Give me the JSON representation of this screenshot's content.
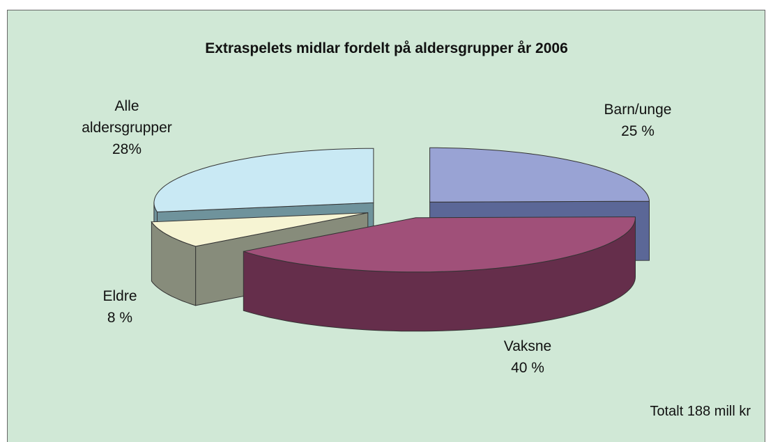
{
  "chart_data": {
    "type": "pie3d",
    "title": "Extraspelets midlar fordelt på aldersgrupper år 2006",
    "categories": [
      "Barn/unge",
      "Vaksne",
      "Eldre",
      "Alle aldersgrupper"
    ],
    "values": [
      25,
      40,
      8,
      28
    ],
    "value_labels": [
      "25 %",
      "40 %",
      "8 %",
      "28%"
    ],
    "colors": [
      "#99a3d4",
      "#a05079",
      "#f6f4d3",
      "#c9e9f4"
    ],
    "side_colors": [
      "#5b6797",
      "#652e4b",
      "#878c7b",
      "#6f939c"
    ],
    "annotation": "Totalt 188 mill kr"
  }
}
